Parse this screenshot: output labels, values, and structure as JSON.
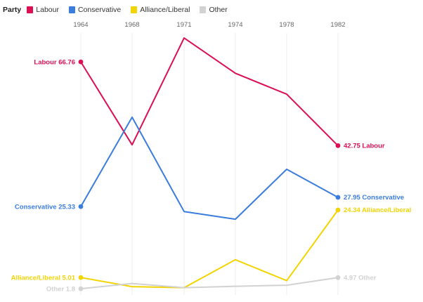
{
  "legend": {
    "title": "Party"
  },
  "chart_data": {
    "type": "line",
    "title": "",
    "xlabel": "",
    "ylabel": "",
    "x_tick_labels": [
      "1964",
      "1968",
      "1971",
      "1974",
      "1978",
      "1982"
    ],
    "x_axis_position": "top",
    "grid": "vertical-only",
    "legend_position": "top-left",
    "legend_title": "Party",
    "ylim": [
      0,
      75
    ],
    "series": [
      {
        "name": "Labour",
        "color": "#db0f51",
        "values": [
          66.76,
          43.0,
          73.6,
          63.5,
          57.5,
          42.75
        ],
        "start_label": "Labour 66.76",
        "end_label": "42.75 Labour"
      },
      {
        "name": "Conservative",
        "color": "#3b7ddd",
        "values": [
          25.33,
          50.9,
          23.9,
          21.7,
          36.0,
          27.95
        ],
        "start_label": "Conservative 25.33",
        "end_label": "27.95 Conservative"
      },
      {
        "name": "Alliance/Liberal",
        "color": "#f3d403",
        "values": [
          5.01,
          2.4,
          2.1,
          10.1,
          4.1,
          24.34
        ],
        "start_label": "Alliance/Liberal 5.01",
        "end_label": "24.34 Alliance/Liberal"
      },
      {
        "name": "Other",
        "color": "#d2d2d2",
        "values": [
          1.8,
          3.3,
          2.1,
          2.5,
          2.8,
          4.97
        ],
        "start_label": "Other 1.8",
        "end_label": "4.97 Other"
      }
    ]
  }
}
